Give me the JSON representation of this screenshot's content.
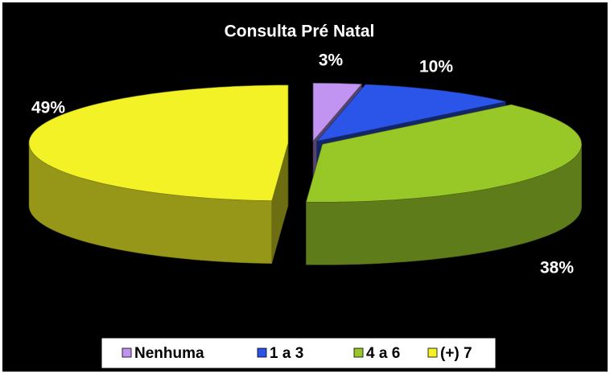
{
  "chart_data": {
    "type": "pie",
    "title": "Consulta Pré Natal",
    "categories": [
      "Nenhuma",
      "1 a 3",
      "4 a 6",
      "(+) 7"
    ],
    "values": [
      3,
      10,
      38,
      49
    ],
    "value_labels": [
      "3%",
      "10%",
      "38%",
      "49%"
    ],
    "colors": [
      "#c094f0",
      "#2a55e8",
      "#98c828",
      "#f2f226"
    ],
    "legend": "bottom"
  }
}
